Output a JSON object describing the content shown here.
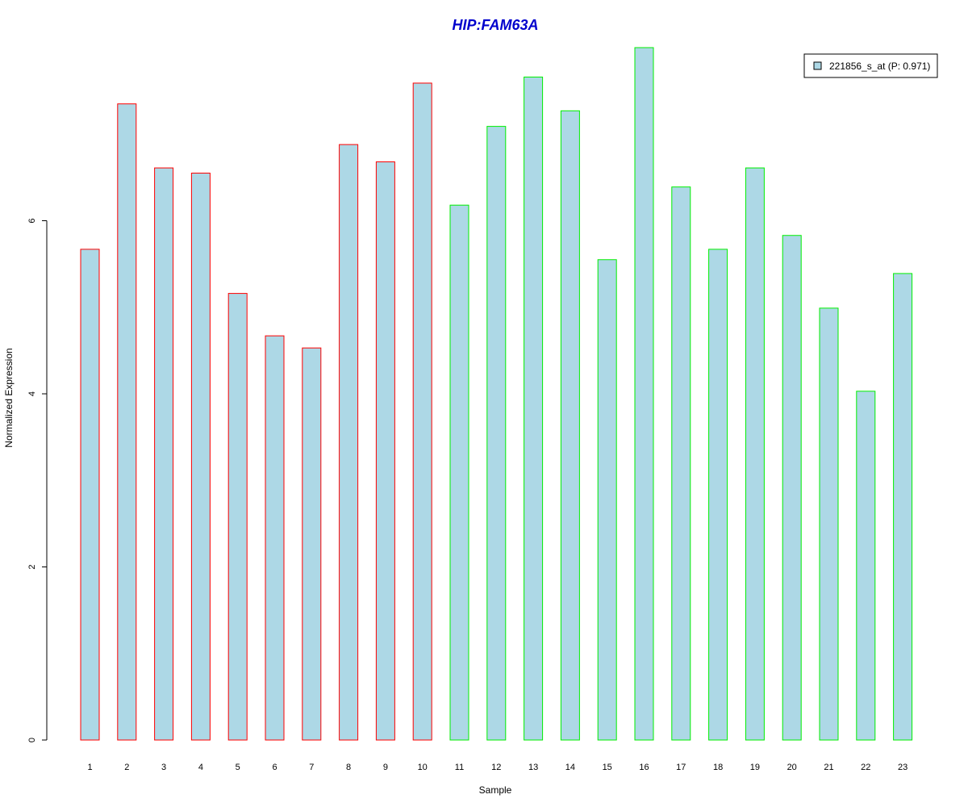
{
  "chart_data": {
    "type": "bar",
    "title": "HIP:FAM63A",
    "xlabel": "Sample",
    "ylabel": "Normalized Expression",
    "ylim": [
      0,
      8
    ],
    "y_ticks": [
      0,
      2,
      4,
      6
    ],
    "grid": false,
    "legend_position": "top-right",
    "categories": [
      "1",
      "2",
      "3",
      "4",
      "5",
      "6",
      "7",
      "8",
      "9",
      "10",
      "11",
      "12",
      "13",
      "14",
      "15",
      "16",
      "17",
      "18",
      "19",
      "20",
      "21",
      "22",
      "23"
    ],
    "series": [
      {
        "name": "221856_s_at (P: 0.971)",
        "values": [
          5.67,
          7.35,
          6.61,
          6.55,
          5.16,
          4.67,
          4.53,
          6.88,
          6.68,
          7.59,
          6.18,
          7.09,
          7.66,
          7.27,
          5.55,
          8.0,
          6.39,
          5.67,
          6.61,
          5.83,
          4.99,
          4.03,
          5.39
        ],
        "fill": "#add8e6"
      }
    ],
    "group_outline_colors": [
      "#ff0000",
      "#ff0000",
      "#ff0000",
      "#ff0000",
      "#ff0000",
      "#ff0000",
      "#ff0000",
      "#ff0000",
      "#ff0000",
      "#ff0000",
      "#00ee00",
      "#00ee00",
      "#00ee00",
      "#00ee00",
      "#00ee00",
      "#00ee00",
      "#00ee00",
      "#00ee00",
      "#00ee00",
      "#00ee00",
      "#00ee00",
      "#00ee00",
      "#00ee00"
    ],
    "title_color": "#0000cd"
  }
}
